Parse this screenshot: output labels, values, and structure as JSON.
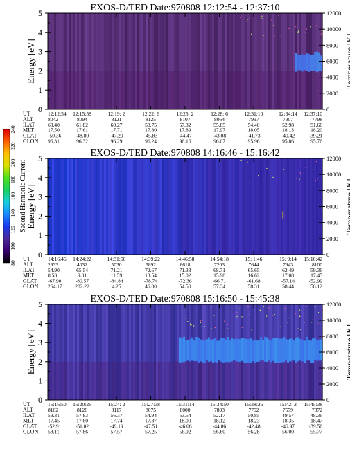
{
  "panels": [
    {
      "title": "EXOS-D/TED   Date:970808   12:12:54 - 12:37:10",
      "ut": [
        "12:12:54",
        "12:15:58",
        "12:19: 2",
        "12:22: 6",
        "12:25: 2",
        "12:28: 6",
        "12:31:10",
        "12:34:14",
        "12:37:10"
      ],
      "alt": [
        "8042",
        "8094",
        "8121",
        "8125",
        "8107",
        "8064",
        "7997",
        "7907",
        "7798"
      ],
      "ilat": [
        "63.40",
        "61.82",
        "60.27",
        "58.75",
        "57.32",
        "55.85",
        "54.40",
        "52.98",
        "51.66"
      ],
      "mlt": [
        "17.50",
        "17.61",
        "17.71",
        "17.80",
        "17.89",
        "17.97",
        "18.05",
        "18.13",
        "18.20"
      ],
      "glat": [
        "-50.36",
        "-48.80",
        "-47.29",
        "-45.83",
        "-44.47",
        "-43.08",
        "-41.73",
        "-40.42",
        "-39.21"
      ],
      "glon": [
        "96.31",
        "96.32",
        "96.29",
        "96.24",
        "96.16",
        "96.07",
        "95.96",
        "95.86",
        "95.76"
      ],
      "base": [
        88,
        48,
        120
      ],
      "band": {
        "start": 0.9,
        "color": [
          70,
          120,
          230
        ],
        "ymin": 2.0,
        "ymax": 2.9
      }
    },
    {
      "title": "EXOS-D/TED   Date:970808   14:16:46 - 15:16:42",
      "ut": [
        "14:16:46",
        "14:24:22",
        "14:31:50",
        "14:39:22",
        "14:46:58",
        "14:54:18",
        "15: 1:46",
        "15: 9:14",
        "15:16:42"
      ],
      "alt": [
        "2933",
        "4032",
        "5030",
        "5892",
        "6618",
        "7203",
        "7644",
        "7943",
        "8100"
      ],
      "ilat": [
        "54.90",
        "65.54",
        "71.21",
        "72.67",
        "71.33",
        "68.71",
        "65.65",
        "62.49",
        "59.36"
      ],
      "mlt": [
        "8.53",
        "9.81",
        "11.59",
        "13.54",
        "15.02",
        "15.98",
        "16.62",
        "17.08",
        "17.45"
      ],
      "glat": [
        "-67.90",
        "-80.57",
        "-84.84",
        "-78.74",
        "-72.36",
        "-66.71",
        "-61.68",
        "-57.14",
        "-52.99"
      ],
      "glon": [
        "264.17",
        "282.22",
        "4.25",
        "46.00",
        "54.50",
        "57.34",
        "58.31",
        "58.44",
        "58.12"
      ],
      "base": [
        40,
        70,
        230
      ],
      "band": null
    },
    {
      "title": "EXOS-D/TED   Date:970808   15:16:50 - 15:45:38",
      "ut": [
        "15:16:50",
        "15:20:26",
        "15:24: 2",
        "15:27:38",
        "15:31:14",
        "15:34:50",
        "15:38:26",
        "15:42: 2",
        "15:45:38"
      ],
      "alt": [
        "8102",
        "8126",
        "8117",
        "8075",
        "8000",
        "7893",
        "7752",
        "7579",
        "7372"
      ],
      "ilat": [
        "59.31",
        "57.83",
        "56.37",
        "54.94",
        "53.54",
        "52.17",
        "50.85",
        "49.57",
        "48.36"
      ],
      "mlt": [
        "17.45",
        "17.60",
        "17.74",
        "17.87",
        "18.00",
        "18.12",
        "18.23",
        "18.35",
        "18.47"
      ],
      "glat": [
        "-52.91",
        "-51.02",
        "-49.19",
        "-47.51",
        "-46.06",
        "-44.06",
        "-42.48",
        "-40.97",
        "-39.56"
      ],
      "glon": [
        "58.11",
        "57.86",
        "57.57",
        "57.25",
        "56.92",
        "56.60",
        "56.28",
        "56.00",
        "55.77"
      ],
      "base": [
        70,
        60,
        170
      ],
      "band": {
        "start": 0.47,
        "color": [
          60,
          130,
          235
        ],
        "ymin": 2.0,
        "ymax": 3.2
      }
    }
  ],
  "axis": {
    "ylabel": "Energy [eV]",
    "y2label": "Temperature [K]",
    "yticks": [
      "0",
      "1",
      "2",
      "3",
      "4",
      "5"
    ],
    "y2ticks": [
      "0",
      "2000",
      "4000",
      "6000",
      "8000",
      "10000",
      "12000"
    ],
    "row_labels": [
      "UT",
      "ALT",
      "ILAT",
      "MLT",
      "GLAT",
      "GLON"
    ]
  },
  "colorbar": {
    "label": "Second Harmonic Current",
    "ticks": [
      "80",
      "100",
      "120",
      "140",
      "160",
      "180",
      "200",
      "220",
      "240"
    ],
    "stops": [
      "#000000",
      "#3a0070",
      "#4a2a9a",
      "#1a3aee",
      "#1a8aff",
      "#16cfe0",
      "#18d060",
      "#50e020",
      "#d8e000",
      "#ffc000",
      "#ff6000",
      "#e00000"
    ]
  },
  "chart_data": [
    {
      "type": "heatmap",
      "title": "EXOS-D/TED   Date:970808   12:12:54 - 12:37:10",
      "ylabel": "Energy [eV]",
      "y2label": "Temperature [K]",
      "ylim": [
        0,
        5
      ],
      "y2lim": [
        0,
        12000
      ],
      "x": [
        "12:12:54",
        "12:15:58",
        "12:19: 2",
        "12:22: 6",
        "12:25: 2",
        "12:28: 6",
        "12:31:10",
        "12:34:14",
        "12:37:10"
      ],
      "colorbar": {
        "label": "Second Harmonic Current",
        "range": [
          80,
          240
        ]
      }
    },
    {
      "type": "heatmap",
      "title": "EXOS-D/TED   Date:970808   14:16:46 - 15:16:42",
      "ylabel": "Energy [eV]",
      "y2label": "Temperature [K]",
      "ylim": [
        0,
        5
      ],
      "y2lim": [
        0,
        12000
      ],
      "x": [
        "14:16:46",
        "14:24:22",
        "14:31:50",
        "14:39:22",
        "14:46:58",
        "14:54:18",
        "15: 1:46",
        "15: 9:14",
        "15:16:42"
      ],
      "colorbar": {
        "label": "Second Harmonic Current",
        "range": [
          80,
          240
        ]
      }
    },
    {
      "type": "heatmap",
      "title": "EXOS-D/TED   Date:970808   15:16:50 - 15:45:38",
      "ylabel": "Energy [eV]",
      "y2label": "Temperature [K]",
      "ylim": [
        0,
        5
      ],
      "y2lim": [
        0,
        12000
      ],
      "x": [
        "15:16:50",
        "15:20:26",
        "15:24: 2",
        "15:27:38",
        "15:31:14",
        "15:34:50",
        "15:38:26",
        "15:42: 2",
        "15:45:38"
      ],
      "colorbar": {
        "label": "Second Harmonic Current",
        "range": [
          80,
          240
        ]
      }
    }
  ]
}
